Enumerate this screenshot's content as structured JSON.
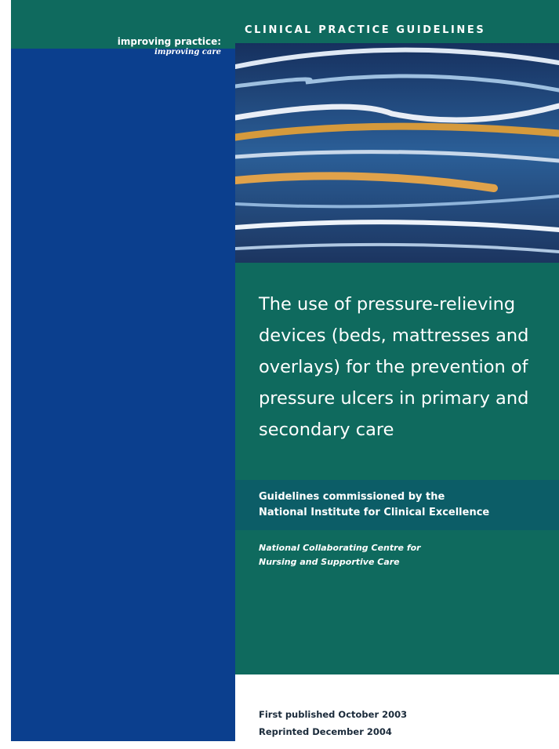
{
  "header": {
    "tagline_1": "improving practice:",
    "tagline_2": "improving care",
    "series_label": "CLINICAL PRACTICE GUIDELINES"
  },
  "title": {
    "lines": [
      "The use of pressure-relieving",
      "devices (beds, mattresses and",
      "overlays) for the prevention of",
      "pressure ulcers in primary and",
      "secondary care"
    ]
  },
  "commission": {
    "lines": [
      "Guidelines commissioned by the",
      "National Institute for Clinical Excellence"
    ]
  },
  "centre": {
    "lines": [
      "National Collaborating Centre for",
      "Nursing and Supportive Care"
    ]
  },
  "publication": {
    "lines": [
      "First published October 2003",
      "Reprinted December 2004"
    ]
  }
}
